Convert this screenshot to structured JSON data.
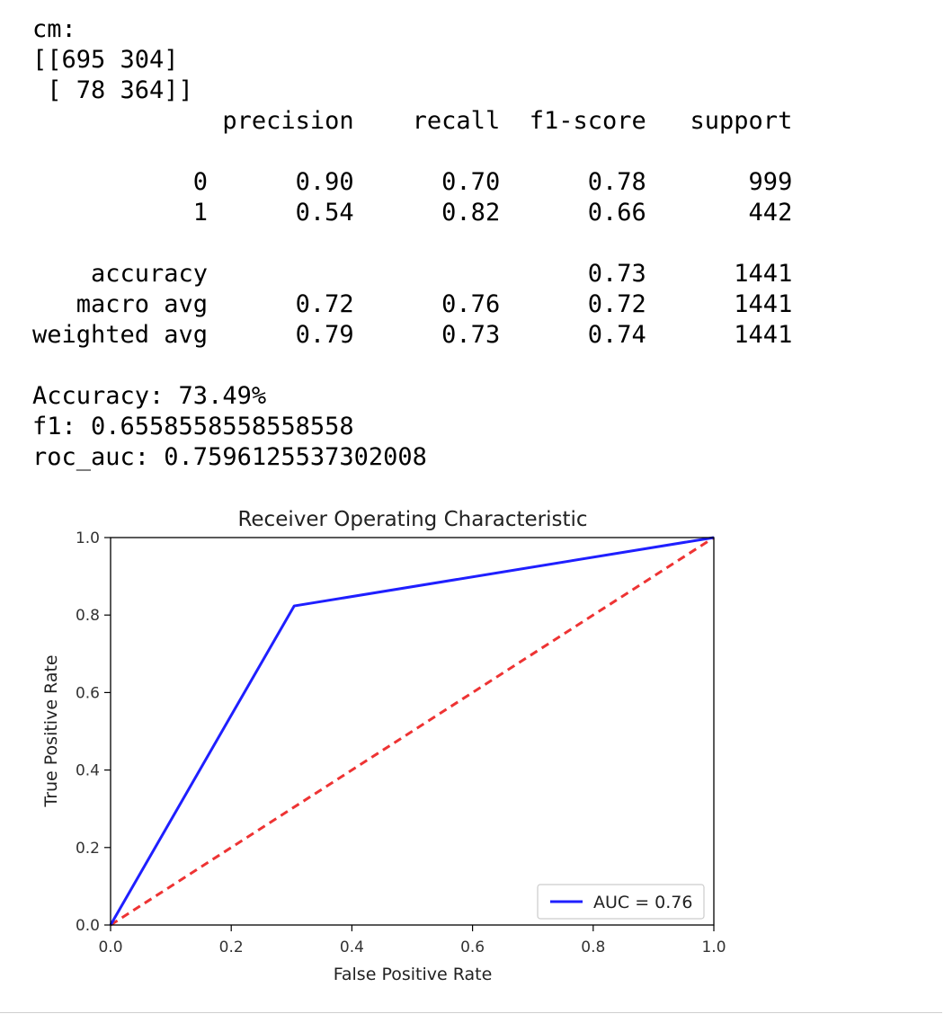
{
  "output": {
    "cm_label": "cm:",
    "cm_rows": [
      "[[695 304]",
      " [ 78 364]]"
    ],
    "report_header": [
      "precision",
      "recall",
      "f1-score",
      "support"
    ],
    "report_rows": [
      {
        "label": "0",
        "precision": "0.90",
        "recall": "0.70",
        "f1": "0.78",
        "support": "999"
      },
      {
        "label": "1",
        "precision": "0.54",
        "recall": "0.82",
        "f1": "0.66",
        "support": "442"
      }
    ],
    "summary_rows": [
      {
        "label": "accuracy",
        "precision": "",
        "recall": "",
        "f1": "0.73",
        "support": "1441"
      },
      {
        "label": "macro avg",
        "precision": "0.72",
        "recall": "0.76",
        "f1": "0.72",
        "support": "1441"
      },
      {
        "label": "weighted avg",
        "precision": "0.79",
        "recall": "0.73",
        "f1": "0.74",
        "support": "1441"
      }
    ],
    "accuracy_line": "Accuracy: 73.49%",
    "f1_line": "f1: 0.6558558558558558",
    "roc_auc_line": "roc_auc: 0.7596125537302008"
  },
  "chart_data": {
    "type": "line",
    "title": "Receiver Operating Characteristic",
    "xlabel": "False Positive Rate",
    "ylabel": "True Positive Rate",
    "xlim": [
      0,
      1
    ],
    "ylim": [
      0,
      1
    ],
    "xticks": [
      "0.0",
      "0.2",
      "0.4",
      "0.6",
      "0.8",
      "1.0"
    ],
    "yticks": [
      "0.0",
      "0.2",
      "0.4",
      "0.6",
      "0.8",
      "1.0"
    ],
    "grid": false,
    "legend_position": "lower right",
    "series": [
      {
        "name": "AUC = 0.76",
        "color": "#1f1fff",
        "style": "solid",
        "x": [
          0.0,
          0.3043,
          1.0
        ],
        "y": [
          0.0,
          0.8235,
          1.0
        ]
      },
      {
        "color": "#ee3333",
        "style": "dashed",
        "x": [
          0.0,
          1.0
        ],
        "y": [
          0.0,
          1.0
        ]
      }
    ]
  }
}
